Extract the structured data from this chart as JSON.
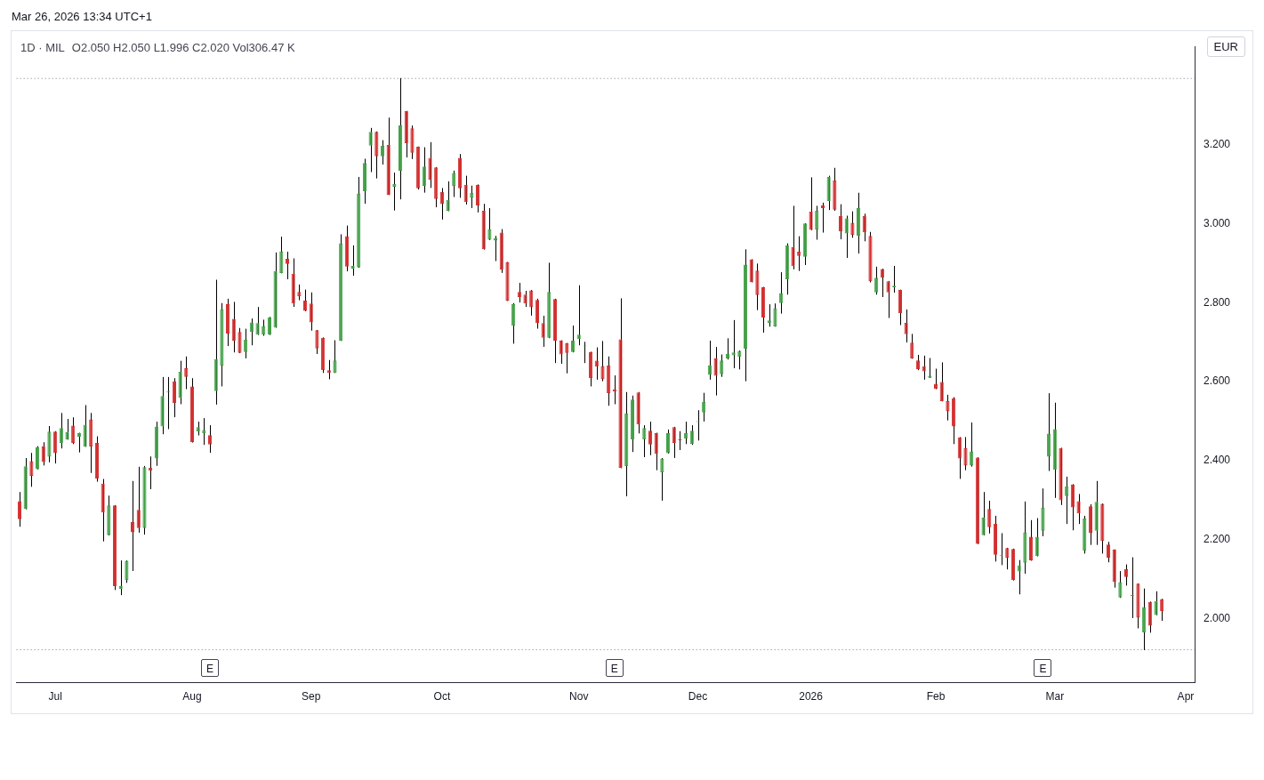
{
  "chart_data": {
    "type": "candlestick",
    "title": "1D · MIL",
    "subtitle": "O2.050 H2.050 L1.996 C2.020 Vol306.47 K",
    "ylabel": "EUR",
    "annotations": [
      "Mar 26, 2026 13:34 UTC+1",
      "E",
      "E",
      "E"
    ],
    "categories": [
      null,
      null,
      null,
      null,
      null,
      null,
      "Jul",
      null,
      null,
      null,
      null,
      null,
      null,
      null,
      null,
      null,
      null,
      null,
      null,
      null,
      null,
      null,
      null,
      null,
      null,
      null,
      null,
      null,
      null,
      "Aug",
      null,
      null,
      null,
      null,
      null,
      null,
      null,
      null,
      null,
      null,
      null,
      null,
      null,
      null,
      null,
      null,
      null,
      null,
      null,
      "Sep",
      null,
      null,
      null,
      null,
      null,
      null,
      null,
      null,
      null,
      null,
      null,
      null,
      null,
      null,
      null,
      null,
      null,
      null,
      null,
      null,
      null,
      "Oct",
      null,
      null,
      null,
      null,
      null,
      null,
      null,
      null,
      null,
      null,
      null,
      null,
      null,
      null,
      null,
      null,
      null,
      null,
      null,
      null,
      null,
      null,
      "Nov",
      null,
      null,
      null,
      null,
      null,
      null,
      null,
      null,
      null,
      null,
      null,
      null,
      null,
      null,
      null,
      null,
      null,
      null,
      null,
      "Dec",
      null,
      null,
      null,
      null,
      null,
      null,
      null,
      null,
      null,
      null,
      null,
      null,
      null,
      null,
      null,
      null,
      null,
      null,
      "2026",
      null,
      null,
      null,
      null,
      null,
      null,
      null,
      null,
      null,
      null,
      null,
      null,
      null,
      null,
      null,
      null,
      null,
      null,
      null,
      null,
      "Feb",
      null,
      null,
      null,
      null,
      null,
      null,
      null,
      null,
      null,
      null,
      null,
      null,
      null,
      null,
      null,
      null,
      null,
      null,
      null,
      "Mar",
      null,
      null,
      null,
      null,
      null,
      null,
      null,
      null,
      null,
      null,
      null,
      null,
      null,
      null,
      null,
      null,
      null,
      null,
      null,
      null,
      null,
      "Apr",
      null
    ],
    "ohlc": [
      [
        2.298,
        2.32,
        2.234,
        2.252
      ],
      [
        2.278,
        2.406,
        2.278,
        2.386
      ],
      [
        2.399,
        2.419,
        2.335,
        2.362
      ],
      [
        2.379,
        2.436,
        2.379,
        2.434
      ],
      [
        2.436,
        2.446,
        2.389,
        2.397
      ],
      [
        2.41,
        2.487,
        2.397,
        2.474
      ],
      [
        2.474,
        2.474,
        2.394,
        2.419
      ],
      [
        2.445,
        2.52,
        2.432,
        2.483
      ],
      [
        2.454,
        2.505,
        2.454,
        2.472
      ],
      [
        2.489,
        2.509,
        2.443,
        2.445
      ],
      [
        2.461,
        2.47,
        2.422,
        2.47
      ],
      [
        2.436,
        2.54,
        2.436,
        2.491
      ],
      [
        2.505,
        2.52,
        2.37,
        2.436
      ],
      [
        2.445,
        2.461,
        2.348,
        2.355
      ],
      [
        2.342,
        2.353,
        2.197,
        2.269
      ],
      [
        2.212,
        2.311,
        2.212,
        2.287
      ],
      [
        2.287,
        2.287,
        2.074,
        2.083
      ],
      [
        2.076,
        2.147,
        2.061,
        2.083
      ],
      [
        2.098,
        2.147,
        2.092,
        2.147
      ],
      [
        2.245,
        2.348,
        2.122,
        2.219
      ],
      [
        2.276,
        2.384,
        2.219,
        2.23
      ],
      [
        2.23,
        2.386,
        2.214,
        2.384
      ],
      [
        2.382,
        2.41,
        2.329,
        2.375
      ],
      [
        2.406,
        2.498,
        2.388,
        2.487
      ],
      [
        2.487,
        2.611,
        2.468,
        2.564
      ],
      [
        2.573,
        2.611,
        2.481,
        2.573
      ],
      [
        2.601,
        2.608,
        2.511,
        2.546
      ],
      [
        2.56,
        2.652,
        2.544,
        2.625
      ],
      [
        2.634,
        2.663,
        2.582,
        2.612
      ],
      [
        2.588,
        2.608,
        2.447,
        2.447
      ],
      [
        2.474,
        2.498,
        2.465,
        2.485
      ],
      [
        2.47,
        2.507,
        2.441,
        2.478
      ],
      [
        2.465,
        2.489,
        2.421,
        2.441
      ],
      [
        2.576,
        2.857,
        2.543,
        2.657
      ],
      [
        2.64,
        2.798,
        2.589,
        2.783
      ],
      [
        2.796,
        2.809,
        2.691,
        2.722
      ],
      [
        2.759,
        2.801,
        2.675,
        2.704
      ],
      [
        2.726,
        2.735,
        2.673,
        2.673
      ],
      [
        2.675,
        2.733,
        2.66,
        2.706
      ],
      [
        2.726,
        2.759,
        2.693,
        2.75
      ],
      [
        2.719,
        2.788,
        2.719,
        2.748
      ],
      [
        2.719,
        2.756,
        2.717,
        2.741
      ],
      [
        2.719,
        2.763,
        2.719,
        2.763
      ],
      [
        2.737,
        2.926,
        2.737,
        2.88
      ],
      [
        2.875,
        2.966,
        2.875,
        2.93
      ],
      [
        2.911,
        2.928,
        2.86,
        2.898
      ],
      [
        2.873,
        2.911,
        2.79,
        2.798
      ],
      [
        2.827,
        2.845,
        2.807,
        2.816
      ],
      [
        2.805,
        2.832,
        2.779,
        2.779
      ],
      [
        2.798,
        2.825,
        2.73,
        2.75
      ],
      [
        2.73,
        2.73,
        2.671,
        2.684
      ],
      [
        2.711,
        2.711,
        2.623,
        2.629
      ],
      [
        2.629,
        2.654,
        2.607,
        2.623
      ],
      [
        2.623,
        2.704,
        2.623,
        2.654
      ],
      [
        2.704,
        2.972,
        2.704,
        2.95
      ],
      [
        2.968,
        2.994,
        2.88,
        2.891
      ],
      [
        2.886,
        2.944,
        2.869,
        2.893
      ],
      [
        2.889,
        3.117,
        2.889,
        3.076
      ],
      [
        3.082,
        3.163,
        3.051,
        3.153
      ],
      [
        3.197,
        3.241,
        3.131,
        3.232
      ],
      [
        3.232,
        3.232,
        3.115,
        3.17
      ],
      [
        3.17,
        3.21,
        3.15,
        3.197
      ],
      [
        3.199,
        3.267,
        3.073,
        3.073
      ],
      [
        3.093,
        3.128,
        3.034,
        3.1
      ],
      [
        3.133,
        3.367,
        3.062,
        3.249
      ],
      [
        3.284,
        3.284,
        3.168,
        3.203
      ],
      [
        3.241,
        3.247,
        3.164,
        3.179
      ],
      [
        3.194,
        3.194,
        3.087,
        3.089
      ],
      [
        3.095,
        3.192,
        3.079,
        3.144
      ],
      [
        3.166,
        3.205,
        3.091,
        3.111
      ],
      [
        3.142,
        3.142,
        3.042,
        3.062
      ],
      [
        3.08,
        3.089,
        3.011,
        3.049
      ],
      [
        3.032,
        3.106,
        3.032,
        3.06
      ],
      [
        3.095,
        3.133,
        3.068,
        3.128
      ],
      [
        3.166,
        3.175,
        3.066,
        3.089
      ],
      [
        3.098,
        3.12,
        3.049,
        3.054
      ],
      [
        3.065,
        3.095,
        3.04,
        3.078
      ],
      [
        3.098,
        3.098,
        3.029,
        3.045
      ],
      [
        3.032,
        3.049,
        2.935,
        2.935
      ],
      [
        2.959,
        3.038,
        2.959,
        2.985
      ],
      [
        2.957,
        2.968,
        2.906,
        2.963
      ],
      [
        2.977,
        2.985,
        2.876,
        2.884
      ],
      [
        2.902,
        2.902,
        2.805,
        2.805
      ],
      [
        2.741,
        2.798,
        2.697,
        2.796
      ],
      [
        2.827,
        2.849,
        2.801,
        2.814
      ],
      [
        2.82,
        2.829,
        2.79,
        2.798
      ],
      [
        2.831,
        2.831,
        2.768,
        2.788
      ],
      [
        2.807,
        2.809,
        2.735,
        2.748
      ],
      [
        2.748,
        2.766,
        2.689,
        2.711
      ],
      [
        2.711,
        2.9,
        2.711,
        2.827
      ],
      [
        2.809,
        2.809,
        2.648,
        2.704
      ],
      [
        2.704,
        2.704,
        2.646,
        2.669
      ],
      [
        2.697,
        2.697,
        2.622,
        2.673
      ],
      [
        2.675,
        2.741,
        2.675,
        2.704
      ],
      [
        2.708,
        2.843,
        2.693,
        2.719
      ],
      [
        2.689,
        2.7,
        2.648,
        2.689
      ],
      [
        2.675,
        2.675,
        2.589,
        2.609
      ],
      [
        2.653,
        2.686,
        2.606,
        2.638
      ],
      [
        2.64,
        2.702,
        2.602,
        2.606
      ],
      [
        2.641,
        2.663,
        2.54,
        2.571
      ],
      [
        2.58,
        2.615,
        2.544,
        2.575
      ],
      [
        2.707,
        2.81,
        2.382,
        2.382
      ],
      [
        2.386,
        2.573,
        2.311,
        2.52
      ],
      [
        2.454,
        2.564,
        2.423,
        2.555
      ],
      [
        2.573,
        2.573,
        2.47,
        2.492
      ],
      [
        2.454,
        2.489,
        2.41,
        2.483
      ],
      [
        2.476,
        2.498,
        2.415,
        2.441
      ],
      [
        2.47,
        2.47,
        2.377,
        2.417
      ],
      [
        2.371,
        2.406,
        2.3,
        2.406
      ],
      [
        2.419,
        2.478,
        2.419,
        2.47
      ],
      [
        2.485,
        2.485,
        2.408,
        2.445
      ],
      [
        2.454,
        2.474,
        2.428,
        2.452
      ],
      [
        2.456,
        2.498,
        2.443,
        2.47
      ],
      [
        2.443,
        2.489,
        2.441,
        2.476
      ],
      [
        2.498,
        2.527,
        2.452,
        2.498
      ],
      [
        2.522,
        2.571,
        2.5,
        2.549
      ],
      [
        2.617,
        2.703,
        2.606,
        2.641
      ],
      [
        2.659,
        2.687,
        2.566,
        2.615
      ],
      [
        2.619,
        2.668,
        2.613,
        2.654
      ],
      [
        2.659,
        2.709,
        2.657,
        2.67
      ],
      [
        2.667,
        2.755,
        2.635,
        2.674
      ],
      [
        2.663,
        2.678,
        2.632,
        2.678
      ],
      [
        2.683,
        2.934,
        2.602,
        2.896
      ],
      [
        2.909,
        2.909,
        2.852,
        2.852
      ],
      [
        2.881,
        2.898,
        2.782,
        2.819
      ],
      [
        2.839,
        2.839,
        2.725,
        2.762
      ],
      [
        2.749,
        2.795,
        2.74,
        2.755
      ],
      [
        2.74,
        2.797,
        2.74,
        2.786
      ],
      [
        2.799,
        2.876,
        2.773,
        2.824
      ],
      [
        2.859,
        2.949,
        2.821,
        2.945
      ],
      [
        2.94,
        3.044,
        2.885,
        2.892
      ],
      [
        2.929,
        2.967,
        2.881,
        2.918
      ],
      [
        2.916,
        3.0,
        2.896,
        3.0
      ],
      [
        3.03,
        3.116,
        2.984,
        2.984
      ],
      [
        2.984,
        3.044,
        2.96,
        3.033
      ],
      [
        3.046,
        3.052,
        2.978,
        3.039
      ],
      [
        3.057,
        3.12,
        3.035,
        3.118
      ],
      [
        3.109,
        3.14,
        3.033,
        3.035
      ],
      [
        3.019,
        3.048,
        2.961,
        2.98
      ],
      [
        2.975,
        3.019,
        2.914,
        3.013
      ],
      [
        3.002,
        3.03,
        2.965,
        2.971
      ],
      [
        2.969,
        3.077,
        2.925,
        3.039
      ],
      [
        3.019,
        3.024,
        2.956,
        2.978
      ],
      [
        2.969,
        2.978,
        2.852,
        2.854
      ],
      [
        2.826,
        2.89,
        2.821,
        2.863
      ],
      [
        2.885,
        2.885,
        2.815,
        2.863
      ],
      [
        2.854,
        2.854,
        2.762,
        2.826
      ],
      [
        2.839,
        2.892,
        2.826,
        2.843
      ],
      [
        2.832,
        2.832,
        2.744,
        2.773
      ],
      [
        2.749,
        2.782,
        2.7,
        2.72
      ],
      [
        2.699,
        2.72,
        2.659,
        2.659
      ],
      [
        2.654,
        2.667,
        2.63,
        2.632
      ],
      [
        2.639,
        2.665,
        2.606,
        2.626
      ],
      [
        2.61,
        2.659,
        2.61,
        2.615
      ],
      [
        2.595,
        2.632,
        2.582,
        2.582
      ],
      [
        2.599,
        2.648,
        2.551,
        2.551
      ],
      [
        2.551,
        2.566,
        2.503,
        2.525
      ],
      [
        2.558,
        2.56,
        2.443,
        2.487
      ],
      [
        2.459,
        2.459,
        2.355,
        2.406
      ],
      [
        2.432,
        2.459,
        2.377,
        2.388
      ],
      [
        2.388,
        2.496,
        2.386,
        2.424
      ],
      [
        2.408,
        2.408,
        2.19,
        2.19
      ],
      [
        2.212,
        2.32,
        2.212,
        2.256
      ],
      [
        2.278,
        2.298,
        2.217,
        2.232
      ],
      [
        2.241,
        2.26,
        2.146,
        2.162
      ],
      [
        2.159,
        2.216,
        2.137,
        2.159
      ],
      [
        2.179,
        2.179,
        2.126,
        2.155
      ],
      [
        2.177,
        2.177,
        2.098,
        2.098
      ],
      [
        2.12,
        2.148,
        2.063,
        2.135
      ],
      [
        2.142,
        2.296,
        2.115,
        2.219
      ],
      [
        2.208,
        2.249,
        2.148,
        2.148
      ],
      [
        2.159,
        2.254,
        2.159,
        2.208
      ],
      [
        2.223,
        2.329,
        2.21,
        2.282
      ],
      [
        2.41,
        2.57,
        2.375,
        2.469
      ],
      [
        2.377,
        2.546,
        2.307,
        2.48
      ],
      [
        2.432,
        2.432,
        2.289,
        2.3
      ],
      [
        2.311,
        2.359,
        2.241,
        2.335
      ],
      [
        2.34,
        2.34,
        2.225,
        2.282
      ],
      [
        2.298,
        2.315,
        2.241,
        2.267
      ],
      [
        2.172,
        2.26,
        2.166,
        2.254
      ],
      [
        2.285,
        2.289,
        2.188,
        2.217
      ],
      [
        2.223,
        2.348,
        2.188,
        2.296
      ],
      [
        2.291,
        2.291,
        2.166,
        2.197
      ],
      [
        2.188,
        2.194,
        2.144,
        2.155
      ],
      [
        2.175,
        2.175,
        2.08,
        2.093
      ],
      [
        2.054,
        2.12,
        2.054,
        2.093
      ],
      [
        2.126,
        2.137,
        2.085,
        2.106
      ],
      [
        2.058,
        2.155,
        2.003,
        2.058
      ],
      [
        2.089,
        2.089,
        1.977,
        2.003
      ],
      [
        1.966,
        2.076,
        1.922,
        2.03
      ],
      [
        2.043,
        2.043,
        1.966,
        1.983
      ],
      [
        2.01,
        2.069,
        2.01,
        2.045
      ],
      [
        2.05,
        2.05,
        1.996,
        2.02
      ],
      null,
      null,
      null,
      null,
      null
    ],
    "colors": [
      "#d32f2f",
      "#43a047",
      "#d32f2f",
      "#43a047",
      "#d32f2f",
      "#43a047",
      "#d32f2f",
      "#43a047",
      "#43a047",
      "#d32f2f",
      "#43a047",
      "#43a047",
      "#d32f2f",
      "#d32f2f",
      "#d32f2f",
      "#43a047",
      "#d32f2f",
      "#43a047",
      "#43a047",
      "#d32f2f",
      "#d32f2f",
      "#43a047",
      "#d32f2f",
      "#43a047",
      "#43a047",
      "#43a047",
      "#d32f2f",
      "#43a047",
      "#d32f2f",
      "#d32f2f",
      "#43a047",
      "#43a047",
      "#d32f2f",
      "#43a047",
      "#43a047",
      "#d32f2f",
      "#d32f2f",
      "#d32f2f",
      "#43a047",
      "#43a047",
      "#43a047",
      "#43a047",
      "#43a047",
      "#43a047",
      "#43a047",
      "#d32f2f",
      "#d32f2f",
      "#d32f2f",
      "#d32f2f",
      "#d32f2f",
      "#d32f2f",
      "#d32f2f",
      "#d32f2f",
      "#43a047",
      "#43a047",
      "#d32f2f",
      "#43a047",
      "#43a047",
      "#43a047",
      "#43a047",
      "#d32f2f",
      "#43a047",
      "#d32f2f",
      "#43a047",
      "#43a047",
      "#d32f2f",
      "#d32f2f",
      "#d32f2f",
      "#43a047",
      "#d32f2f",
      "#d32f2f",
      "#d32f2f",
      "#43a047",
      "#43a047",
      "#d32f2f",
      "#d32f2f",
      "#43a047",
      "#d32f2f",
      "#d32f2f",
      "#43a047",
      "#43a047",
      "#d32f2f",
      "#d32f2f",
      "#43a047",
      "#d32f2f",
      "#d32f2f",
      "#d32f2f",
      "#d32f2f",
      "#d32f2f",
      "#43a047",
      "#d32f2f",
      "#d32f2f",
      "#d32f2f",
      "#43a047",
      "#43a047",
      "#43a047",
      "#d32f2f",
      "#d32f2f",
      "#d32f2f",
      "#d32f2f",
      "#d32f2f",
      "#d32f2f",
      "#43a047",
      "#43a047",
      "#d32f2f",
      "#43a047",
      "#d32f2f",
      "#d32f2f",
      "#43a047",
      "#43a047",
      "#d32f2f",
      "#d32f2f",
      "#43a047",
      "#43a047",
      "#43a047",
      "#43a047",
      "#43a047",
      "#d32f2f",
      "#43a047",
      "#43a047",
      "#43a047",
      "#43a047",
      "#43a047",
      "#d32f2f",
      "#d32f2f",
      "#d32f2f",
      "#43a047",
      "#43a047",
      "#43a047",
      "#43a047",
      "#d32f2f",
      "#d32f2f",
      "#43a047",
      "#d32f2f",
      "#43a047",
      "#d32f2f",
      "#43a047",
      "#d32f2f",
      "#d32f2f",
      "#43a047",
      "#d32f2f",
      "#43a047",
      "#d32f2f",
      "#d32f2f",
      "#43a047",
      "#d32f2f",
      "#d32f2f",
      "#43a047",
      "#d32f2f",
      "#d32f2f",
      "#d32f2f",
      "#d32f2f",
      "#d32f2f",
      "#43a047",
      "#d32f2f",
      "#d32f2f",
      "#d32f2f",
      "#d32f2f",
      "#d32f2f",
      "#d32f2f",
      "#43a047",
      "#d32f2f",
      "#43a047",
      "#d32f2f",
      "#d32f2f",
      "#43a047",
      "#d32f2f",
      "#d32f2f",
      "#43a047",
      "#43a047",
      "#d32f2f",
      "#43a047",
      "#43a047",
      "#43a047",
      "#43a047",
      "#d32f2f",
      "#43a047",
      "#d32f2f",
      "#d32f2f",
      "#43a047",
      "#d32f2f",
      "#43a047",
      "#d32f2f",
      "#d32f2f",
      "#d32f2f",
      "#43a047",
      "#d32f2f",
      "#43a047",
      "#d32f2f",
      "#43a047",
      "#d32f2f",
      "#43a047",
      "#d32f2f",
      null,
      null,
      null,
      null,
      null
    ],
    "ylim": [
      1.84,
      3.448
    ],
    "yticks": [
      {
        "value": 2.0,
        "label": "2.000"
      },
      {
        "value": 2.2,
        "label": "2.200"
      },
      {
        "value": 2.4,
        "label": "2.400"
      },
      {
        "value": 2.6,
        "label": "2.600"
      },
      {
        "value": 2.8,
        "label": "2.800"
      },
      {
        "value": 3.0,
        "label": "3.000"
      },
      {
        "value": 3.2,
        "label": "3.200"
      }
    ],
    "ref_lines": [
      {
        "axis": "y",
        "value": 3.367,
        "line_style": "dotted",
        "color": "#787b86"
      },
      {
        "axis": "y",
        "value": 1.922,
        "line_style": "dotted",
        "color": "#787b86"
      }
    ]
  }
}
